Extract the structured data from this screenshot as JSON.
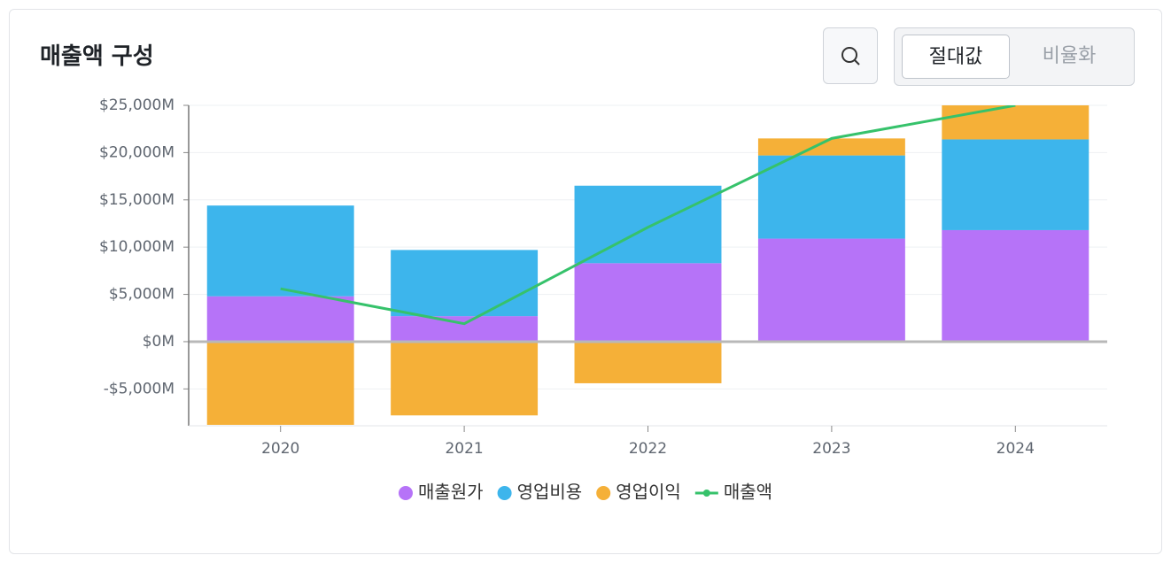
{
  "chart_data": {
    "type": "bar",
    "title": "매출액 구성",
    "categories": [
      "2020",
      "2021",
      "2022",
      "2023",
      "2024"
    ],
    "series": [
      {
        "name": "매출원가",
        "color": "#b673f8",
        "type": "bar",
        "values": [
          4800,
          2700,
          8300,
          10900,
          11800
        ]
      },
      {
        "name": "영업비용",
        "color": "#3db5ec",
        "type": "bar",
        "values": [
          9600,
          7000,
          8200,
          8800,
          9600
        ]
      },
      {
        "name": "영업이익",
        "color": "#f5b038",
        "type": "bar",
        "values": [
          -8800,
          -7800,
          -4400,
          1800,
          3600
        ]
      },
      {
        "name": "매출액",
        "color": "#36c26b",
        "type": "line",
        "values": [
          5600,
          1900,
          12100,
          21500,
          25000
        ]
      }
    ],
    "ylim": [
      -8900,
      25000
    ],
    "yticks": [
      {
        "value": -5000,
        "label": "-$5,000M"
      },
      {
        "value": 0,
        "label": "$0M"
      },
      {
        "value": 5000,
        "label": "$5,000M"
      },
      {
        "value": 10000,
        "label": "$10,000M"
      },
      {
        "value": 15000,
        "label": "$15,000M"
      },
      {
        "value": 20000,
        "label": "$20,000M"
      },
      {
        "value": 25000,
        "label": "$25,000M"
      }
    ],
    "grid": true,
    "stacked": true,
    "legend": "bottom"
  },
  "controls": {
    "toggle": [
      "절대값",
      "비율화"
    ],
    "active": 0
  }
}
